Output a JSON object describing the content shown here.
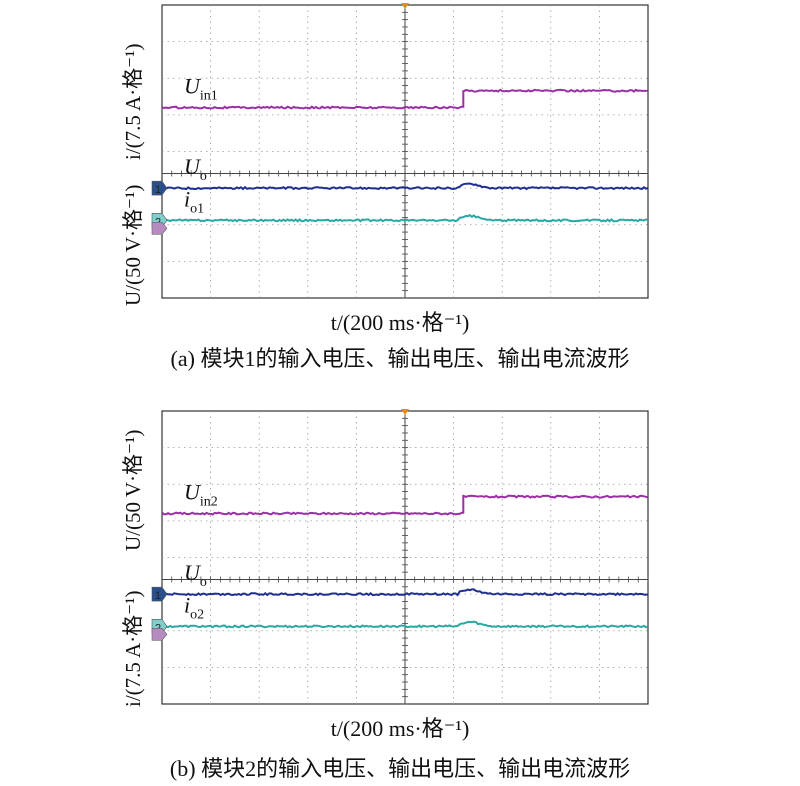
{
  "chart_data": [
    {
      "type": "line",
      "caption": "(a) 模块1的输入电压、输出电压、输出电流波形",
      "xlabel": "t/(200 ms·格⁻¹)",
      "ylabel_upper": "i/(7.5 A·格⁻¹)",
      "ylabel_lower": "U/(50 V·格⁻¹)",
      "grid": true,
      "x_divisions": 10,
      "y_divisions": 8,
      "step_time_div": 6.2,
      "series": [
        {
          "name": "U",
          "sub": "in1",
          "color": "#9b2fa6",
          "before_div": 5.2,
          "after_div": 5.66,
          "marker": ""
        },
        {
          "name": "U",
          "sub": "o",
          "color": "#1f2f8f",
          "before_div": 3.0,
          "after_div": 3.0,
          "marker": "1"
        },
        {
          "name": "i",
          "sub": "o1",
          "color": "#2aa8a4",
          "before_div": 2.12,
          "after_div": 2.12,
          "marker": "2"
        }
      ]
    },
    {
      "type": "line",
      "caption": "(b) 模块2的输入电压、输出电压、输出电流波形",
      "xlabel": "t/(200 ms·格⁻¹)",
      "ylabel_upper": "U/(50 V·格⁻¹)",
      "ylabel_lower": "i/(7.5 A·格⁻¹)",
      "grid": true,
      "x_divisions": 10,
      "y_divisions": 8,
      "step_time_div": 6.2,
      "series": [
        {
          "name": "U",
          "sub": "in2",
          "color": "#9b2fa6",
          "before_div": 5.2,
          "after_div": 5.66,
          "marker": ""
        },
        {
          "name": "U",
          "sub": "o",
          "color": "#1f2f8f",
          "before_div": 3.0,
          "after_div": 3.0,
          "marker": "1"
        },
        {
          "name": "i",
          "sub": "o2",
          "color": "#2aa8a4",
          "before_div": 2.12,
          "after_div": 2.12,
          "marker": "2"
        }
      ]
    }
  ]
}
